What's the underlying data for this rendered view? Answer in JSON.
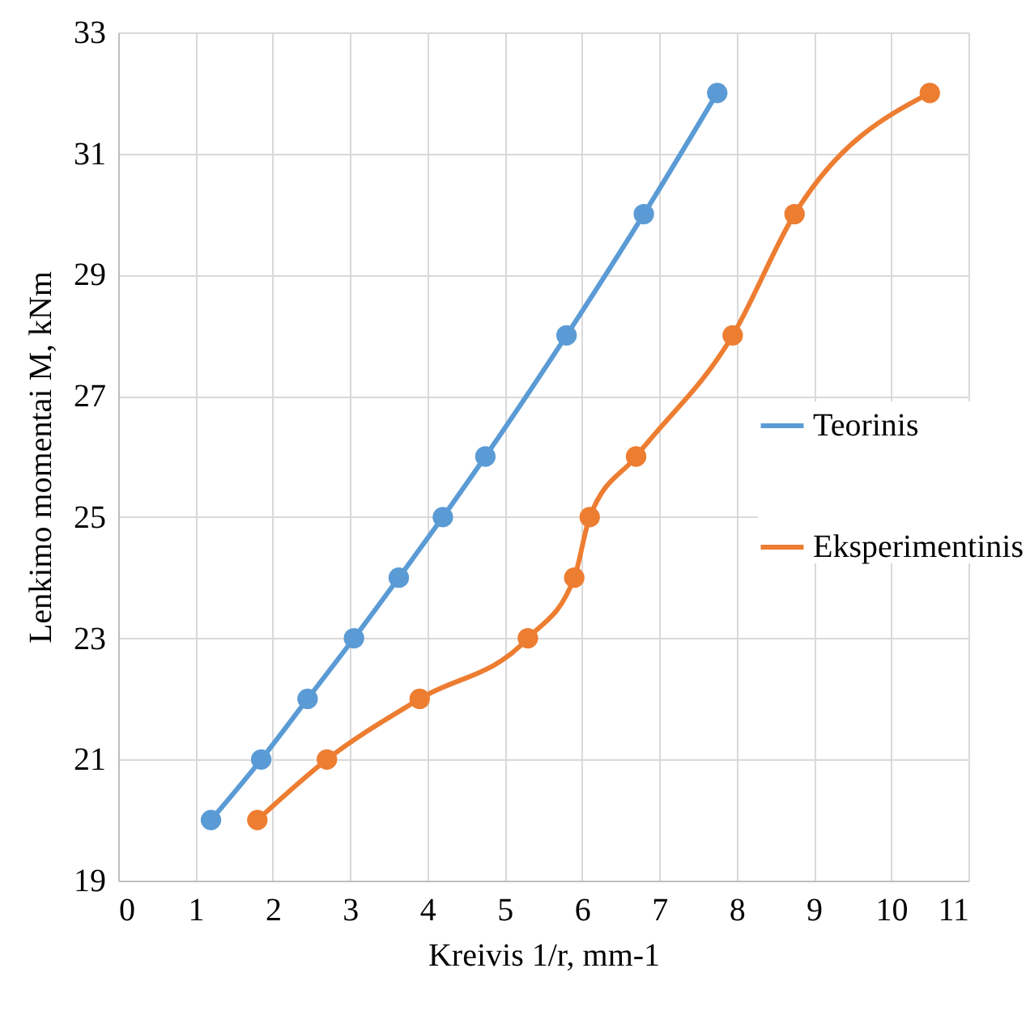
{
  "chart_data": {
    "type": "line",
    "xlabel": "Kreivis 1/r, mm-1",
    "ylabel": "Lenkimo momentai M, kNm",
    "series": [
      {
        "name": "Teorinis",
        "color": "#5b9bd5",
        "x": [
          1.2,
          1.85,
          2.45,
          3.05,
          3.63,
          4.2,
          4.75,
          5.8,
          6.8,
          7.75
        ],
        "values": [
          20,
          21,
          22,
          23,
          24,
          25,
          26,
          28,
          30,
          32
        ]
      },
      {
        "name": "Eksperimentinis",
        "color": "#ed7d31",
        "x": [
          1.8,
          2.7,
          3.9,
          5.3,
          5.9,
          6.1,
          6.7,
          7.95,
          8.75,
          10.5
        ],
        "values": [
          20,
          21,
          22,
          23,
          24,
          25,
          26,
          28,
          30,
          32
        ]
      }
    ],
    "xlim": [
      0,
      11
    ],
    "xticks": [
      0,
      1,
      2,
      3,
      4,
      5,
      6,
      7,
      8,
      9,
      10,
      11
    ],
    "ylim": [
      19,
      33
    ],
    "yticks": [
      19,
      21,
      23,
      25,
      27,
      29,
      31,
      33
    ],
    "grid": true,
    "legend": "right",
    "marker": "circle",
    "line_style": "solid"
  }
}
